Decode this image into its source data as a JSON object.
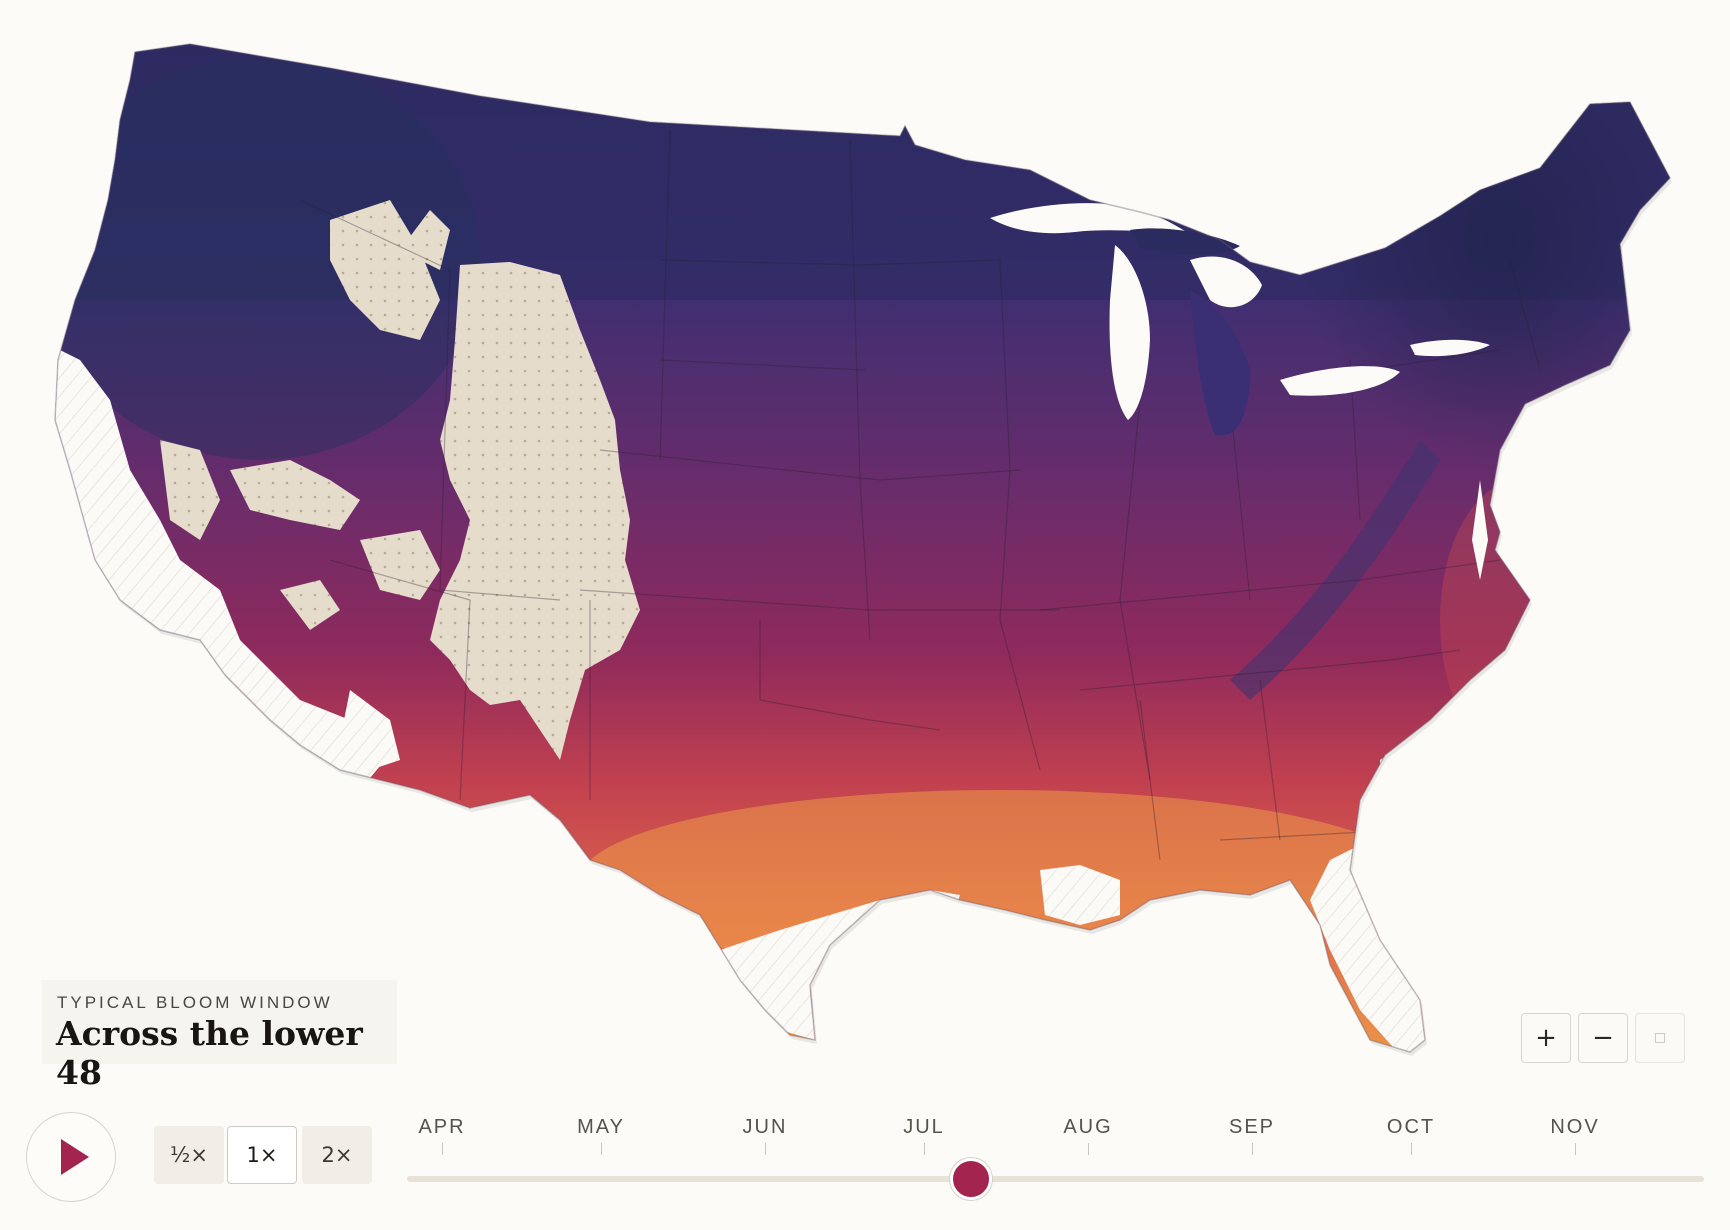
{
  "legend": {
    "eyebrow": "TYPICAL BLOOM WINDOW",
    "title": "Across the lower 48"
  },
  "zoom": {
    "in_label": "+",
    "out_label": "−",
    "reset_icon": "reset-square-icon"
  },
  "playback": {
    "play_icon": "play-icon",
    "speeds": [
      "½×",
      "1×",
      "2×"
    ],
    "selected_speed": "1×"
  },
  "timeline": {
    "months": [
      "APR",
      "MAY",
      "JUN",
      "JUL",
      "AUG",
      "SEP",
      "OCT",
      "NOV"
    ],
    "position_fraction": 0.435
  },
  "colors": {
    "late_bloom": "#2e2c62",
    "mid_bloom": "#7c2a63",
    "early_bloom": "#e48a45",
    "no_bloom_area": "#e6dccb",
    "accent": "#a3254f"
  }
}
